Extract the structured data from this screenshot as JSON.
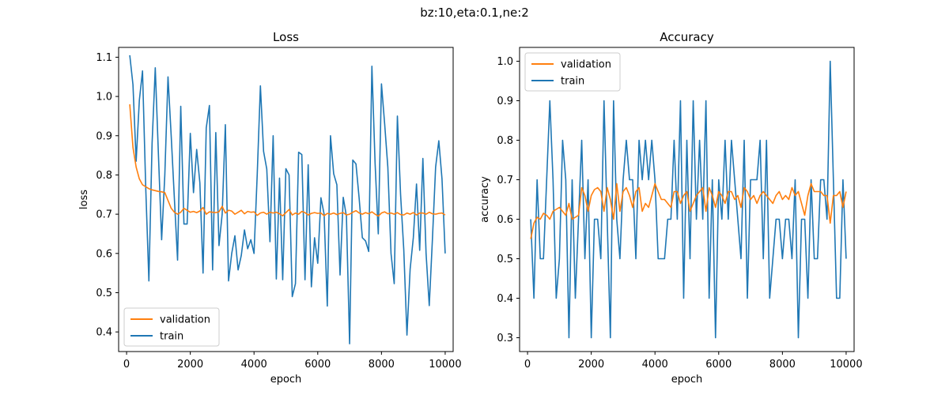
{
  "figure": {
    "suptitle": "bz:10,eta:0.1,ne:2"
  },
  "chart_data": [
    {
      "type": "line",
      "title": "Loss",
      "xlabel": "epoch",
      "ylabel": "loss",
      "xlim": [
        -250,
        10250
      ],
      "ylim": [
        0.35,
        1.125
      ],
      "xticks": [
        0,
        2000,
        4000,
        6000,
        8000,
        10000
      ],
      "xtick_labels": [
        "0",
        "2000",
        "4000",
        "6000",
        "8000",
        "10000"
      ],
      "yticks": [
        0.4,
        0.5,
        0.6,
        0.7,
        0.8,
        0.9,
        1.0,
        1.1
      ],
      "ytick_labels": [
        "0.4",
        "0.5",
        "0.6",
        "0.7",
        "0.8",
        "0.9",
        "1.0",
        "1.1"
      ],
      "legend_position": "lower-left",
      "series": [
        {
          "name": "validation",
          "color": "#ff7f0e",
          "x": [
            100,
            200,
            300,
            400,
            500,
            600,
            700,
            800,
            900,
            1000,
            1100,
            1200,
            1300,
            1400,
            1500,
            1600,
            1700,
            1800,
            1900,
            2000,
            2100,
            2200,
            2300,
            2400,
            2500,
            2600,
            2700,
            2800,
            2900,
            3000,
            3100,
            3200,
            3300,
            3400,
            3500,
            3600,
            3700,
            3800,
            3900,
            4000,
            4100,
            4200,
            4300,
            4400,
            4500,
            4600,
            4700,
            4800,
            4900,
            5000,
            5100,
            5200,
            5300,
            5400,
            5500,
            5600,
            5700,
            5800,
            5900,
            6000,
            6100,
            6200,
            6300,
            6400,
            6500,
            6600,
            6700,
            6800,
            6900,
            7000,
            7100,
            7200,
            7300,
            7400,
            7500,
            7600,
            7700,
            7800,
            7900,
            8000,
            8100,
            8200,
            8300,
            8400,
            8500,
            8600,
            8700,
            8800,
            8900,
            9000,
            9100,
            9200,
            9300,
            9400,
            9500,
            9600,
            9700,
            9800,
            9900,
            10000
          ],
          "values": [
            0.98,
            0.87,
            0.82,
            0.79,
            0.775,
            0.77,
            0.765,
            0.762,
            0.76,
            0.758,
            0.757,
            0.755,
            0.735,
            0.715,
            0.705,
            0.7,
            0.705,
            0.715,
            0.71,
            0.705,
            0.707,
            0.704,
            0.708,
            0.717,
            0.7,
            0.706,
            0.705,
            0.704,
            0.706,
            0.72,
            0.703,
            0.71,
            0.708,
            0.7,
            0.705,
            0.71,
            0.701,
            0.707,
            0.705,
            0.706,
            0.697,
            0.703,
            0.705,
            0.7,
            0.705,
            0.703,
            0.705,
            0.701,
            0.696,
            0.704,
            0.712,
            0.698,
            0.703,
            0.7,
            0.707,
            0.704,
            0.698,
            0.702,
            0.704,
            0.702,
            0.703,
            0.696,
            0.702,
            0.7,
            0.703,
            0.699,
            0.702,
            0.704,
            0.698,
            0.7,
            0.705,
            0.709,
            0.703,
            0.7,
            0.704,
            0.701,
            0.706,
            0.7,
            0.695,
            0.703,
            0.706,
            0.701,
            0.703,
            0.7,
            0.704,
            0.699,
            0.698,
            0.703,
            0.7,
            0.704,
            0.698,
            0.703,
            0.703,
            0.7,
            0.705,
            0.701,
            0.7,
            0.702,
            0.703,
            0.698
          ]
        },
        {
          "name": "train",
          "color": "#1f77b4",
          "x": [
            100,
            200,
            300,
            400,
            500,
            600,
            700,
            800,
            900,
            1000,
            1100,
            1200,
            1300,
            1400,
            1500,
            1600,
            1700,
            1800,
            1900,
            2000,
            2100,
            2200,
            2300,
            2400,
            2500,
            2600,
            2700,
            2800,
            2900,
            3000,
            3100,
            3200,
            3300,
            3400,
            3500,
            3600,
            3700,
            3800,
            3900,
            4000,
            4100,
            4200,
            4300,
            4400,
            4500,
            4600,
            4700,
            4800,
            4900,
            5000,
            5100,
            5200,
            5300,
            5400,
            5500,
            5600,
            5700,
            5800,
            5900,
            6000,
            6100,
            6200,
            6300,
            6400,
            6500,
            6600,
            6700,
            6800,
            6900,
            7000,
            7100,
            7200,
            7300,
            7400,
            7500,
            7600,
            7700,
            7800,
            7900,
            8000,
            8100,
            8200,
            8300,
            8400,
            8500,
            8600,
            8700,
            8800,
            8900,
            9000,
            9100,
            9200,
            9300,
            9400,
            9500,
            9600,
            9700,
            9800,
            9900,
            10000
          ],
          "values": [
            1.105,
            1.03,
            0.835,
            0.99,
            1.065,
            0.77,
            0.53,
            0.88,
            1.073,
            0.85,
            0.635,
            0.8,
            1.05,
            0.9,
            0.74,
            0.583,
            0.975,
            0.675,
            0.675,
            0.906,
            0.755,
            0.865,
            0.78,
            0.55,
            0.92,
            0.977,
            0.558,
            0.908,
            0.62,
            0.7,
            0.928,
            0.53,
            0.6,
            0.645,
            0.558,
            0.595,
            0.66,
            0.612,
            0.635,
            0.6,
            0.8,
            1.027,
            0.86,
            0.815,
            0.63,
            0.9,
            0.535,
            0.792,
            0.533,
            0.816,
            0.8,
            0.49,
            0.523,
            0.858,
            0.852,
            0.533,
            0.826,
            0.515,
            0.64,
            0.575,
            0.742,
            0.7,
            0.466,
            0.9,
            0.803,
            0.775,
            0.545,
            0.743,
            0.695,
            0.37,
            0.838,
            0.828,
            0.74,
            0.64,
            0.632,
            0.605,
            1.077,
            0.83,
            0.65,
            1.032,
            0.93,
            0.82,
            0.6,
            0.523,
            0.95,
            0.75,
            0.61,
            0.392,
            0.56,
            0.64,
            0.777,
            0.608,
            0.842,
            0.6,
            0.467,
            0.637,
            0.82,
            0.887,
            0.79,
            0.6
          ]
        }
      ]
    },
    {
      "type": "line",
      "title": "Accuracy",
      "xlabel": "epoch",
      "ylabel": "accuracy",
      "xlim": [
        -250,
        10250
      ],
      "ylim": [
        0.265,
        1.035
      ],
      "xticks": [
        0,
        2000,
        4000,
        6000,
        8000,
        10000
      ],
      "xtick_labels": [
        "0",
        "2000",
        "4000",
        "6000",
        "8000",
        "10000"
      ],
      "yticks": [
        0.3,
        0.4,
        0.5,
        0.6,
        0.7,
        0.8,
        0.9,
        1.0
      ],
      "ytick_labels": [
        "0.3",
        "0.4",
        "0.5",
        "0.6",
        "0.7",
        "0.8",
        "0.9",
        "1.0"
      ],
      "legend_position": "upper-left",
      "series": [
        {
          "name": "validation",
          "color": "#ff7f0e",
          "x": [
            100,
            200,
            300,
            400,
            500,
            600,
            700,
            800,
            900,
            1000,
            1100,
            1200,
            1300,
            1400,
            1500,
            1600,
            1700,
            1800,
            1900,
            2000,
            2100,
            2200,
            2300,
            2400,
            2500,
            2600,
            2700,
            2800,
            2900,
            3000,
            3100,
            3200,
            3300,
            3400,
            3500,
            3600,
            3700,
            3800,
            3900,
            4000,
            4100,
            4200,
            4300,
            4400,
            4500,
            4600,
            4700,
            4800,
            4900,
            5000,
            5100,
            5200,
            5300,
            5400,
            5500,
            5600,
            5700,
            5800,
            5900,
            6000,
            6100,
            6200,
            6300,
            6400,
            6500,
            6600,
            6700,
            6800,
            6900,
            7000,
            7100,
            7200,
            7300,
            7400,
            7500,
            7600,
            7700,
            7800,
            7900,
            8000,
            8100,
            8200,
            8300,
            8400,
            8500,
            8600,
            8700,
            8800,
            8900,
            9000,
            9100,
            9200,
            9300,
            9400,
            9500,
            9600,
            9700,
            9800,
            9900,
            10000
          ],
          "values": [
            0.55,
            0.59,
            0.605,
            0.6,
            0.615,
            0.61,
            0.6,
            0.62,
            0.625,
            0.63,
            0.62,
            0.61,
            0.64,
            0.6,
            0.605,
            0.61,
            0.68,
            0.66,
            0.62,
            0.66,
            0.675,
            0.68,
            0.67,
            0.62,
            0.68,
            0.65,
            0.6,
            0.69,
            0.62,
            0.67,
            0.68,
            0.66,
            0.63,
            0.67,
            0.68,
            0.62,
            0.64,
            0.63,
            0.66,
            0.69,
            0.67,
            0.65,
            0.65,
            0.64,
            0.63,
            0.67,
            0.67,
            0.64,
            0.66,
            0.67,
            0.62,
            0.64,
            0.66,
            0.67,
            0.68,
            0.62,
            0.68,
            0.66,
            0.63,
            0.67,
            0.66,
            0.64,
            0.67,
            0.67,
            0.65,
            0.66,
            0.63,
            0.68,
            0.67,
            0.65,
            0.66,
            0.64,
            0.66,
            0.67,
            0.66,
            0.65,
            0.64,
            0.66,
            0.67,
            0.65,
            0.66,
            0.65,
            0.68,
            0.66,
            0.67,
            0.64,
            0.61,
            0.66,
            0.69,
            0.67,
            0.67,
            0.67,
            0.66,
            0.66,
            0.59,
            0.66,
            0.66,
            0.67,
            0.63,
            0.67
          ]
        },
        {
          "name": "train",
          "color": "#1f77b4",
          "x": [
            100,
            200,
            300,
            400,
            500,
            600,
            700,
            800,
            900,
            1000,
            1100,
            1200,
            1300,
            1400,
            1500,
            1600,
            1700,
            1800,
            1900,
            2000,
            2100,
            2200,
            2300,
            2400,
            2500,
            2600,
            2700,
            2800,
            2900,
            3000,
            3100,
            3200,
            3300,
            3400,
            3500,
            3600,
            3700,
            3800,
            3900,
            4000,
            4100,
            4200,
            4300,
            4400,
            4500,
            4600,
            4700,
            4800,
            4900,
            5000,
            5100,
            5200,
            5300,
            5400,
            5500,
            5600,
            5700,
            5800,
            5900,
            6000,
            6100,
            6200,
            6300,
            6400,
            6500,
            6600,
            6700,
            6800,
            6900,
            7000,
            7100,
            7200,
            7300,
            7400,
            7500,
            7600,
            7700,
            7800,
            7900,
            8000,
            8100,
            8200,
            8300,
            8400,
            8500,
            8600,
            8700,
            8800,
            8900,
            9000,
            9100,
            9200,
            9300,
            9400,
            9500,
            9600,
            9700,
            9800,
            9900,
            10000
          ],
          "values": [
            0.6,
            0.4,
            0.7,
            0.5,
            0.5,
            0.7,
            0.9,
            0.7,
            0.4,
            0.5,
            0.8,
            0.7,
            0.3,
            0.7,
            0.4,
            0.6,
            0.8,
            0.5,
            0.7,
            0.3,
            0.6,
            0.6,
            0.5,
            0.9,
            0.6,
            0.3,
            0.9,
            0.6,
            0.5,
            0.7,
            0.8,
            0.7,
            0.7,
            0.5,
            0.8,
            0.7,
            0.8,
            0.7,
            0.8,
            0.7,
            0.5,
            0.5,
            0.5,
            0.6,
            0.6,
            0.8,
            0.6,
            0.9,
            0.4,
            0.8,
            0.5,
            0.9,
            0.6,
            0.8,
            0.6,
            0.9,
            0.4,
            0.7,
            0.3,
            0.7,
            0.6,
            0.8,
            0.6,
            0.8,
            0.7,
            0.6,
            0.5,
            0.8,
            0.4,
            0.7,
            0.7,
            0.7,
            0.8,
            0.5,
            0.8,
            0.4,
            0.5,
            0.6,
            0.6,
            0.5,
            0.6,
            0.6,
            0.5,
            0.7,
            0.3,
            0.6,
            0.6,
            0.4,
            0.7,
            0.5,
            0.5,
            0.7,
            0.7,
            0.6,
            1.0,
            0.7,
            0.4,
            0.4,
            0.7,
            0.5
          ]
        }
      ]
    }
  ]
}
